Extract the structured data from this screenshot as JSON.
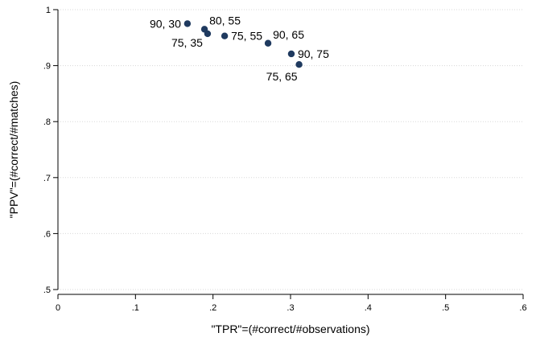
{
  "chart_data": {
    "type": "scatter",
    "xlabel": "\"TPR\"=(#correct/#observations)",
    "ylabel": "\"PPV\"=(#correct/#matches)",
    "xlim": [
      0,
      0.6
    ],
    "ylim": [
      0.5,
      1
    ],
    "xticks": [
      0,
      0.1,
      0.2,
      0.3,
      0.4,
      0.5,
      0.6
    ],
    "xtick_labels": [
      "0",
      ".1",
      ".2",
      ".3",
      ".4",
      ".5",
      ".6"
    ],
    "yticks": [
      0.5,
      0.6,
      0.7,
      0.8,
      0.9,
      1
    ],
    "ytick_labels": [
      ".5",
      ".6",
      ".7",
      ".8",
      ".9",
      "1"
    ],
    "grid": true,
    "marker_color": "#1f3a5f",
    "points": [
      {
        "x": 0.167,
        "y": 0.975,
        "label": "90, 30",
        "label_pos": "left"
      },
      {
        "x": 0.189,
        "y": 0.965,
        "label": "80, 55",
        "label_pos": "right-above"
      },
      {
        "x": 0.193,
        "y": 0.957,
        "label": "75, 35",
        "label_pos": "left-below"
      },
      {
        "x": 0.215,
        "y": 0.953,
        "label": "75, 55",
        "label_pos": "right"
      },
      {
        "x": 0.271,
        "y": 0.94,
        "label": "90, 65",
        "label_pos": "right-above"
      },
      {
        "x": 0.301,
        "y": 0.921,
        "label": "90, 75",
        "label_pos": "right"
      },
      {
        "x": 0.311,
        "y": 0.902,
        "label": "75, 65",
        "label_pos": "below-left"
      }
    ]
  }
}
